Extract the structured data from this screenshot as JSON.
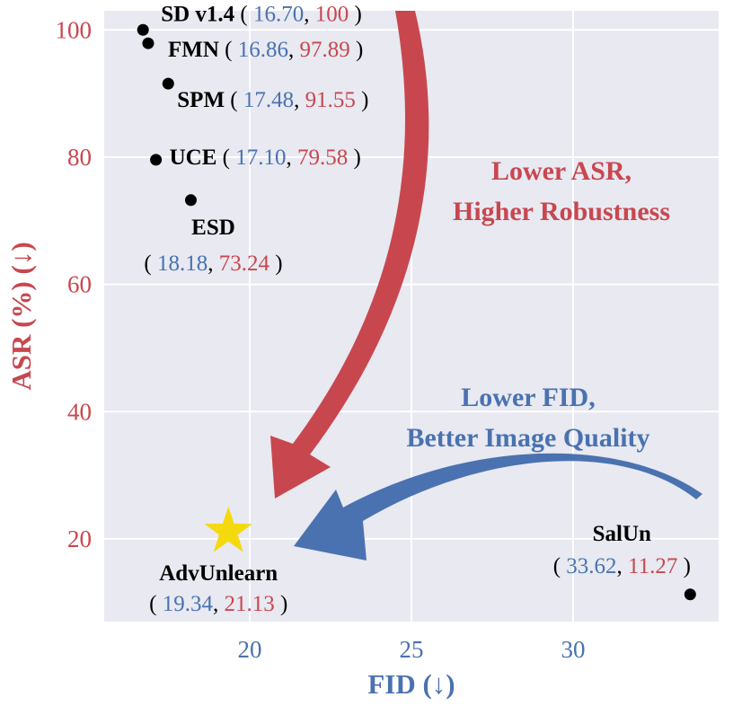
{
  "chart_data": {
    "type": "scatter",
    "xlabel": "FID (↓)",
    "ylabel": "ASR (%) (↓)",
    "xlim": [
      15.5,
      34.5
    ],
    "ylim": [
      7,
      103
    ],
    "xticks": [
      "20",
      "25",
      "30"
    ],
    "yticks": [
      "20",
      "40",
      "60",
      "80",
      "100"
    ],
    "grid": true,
    "points": [
      {
        "name": "SD v1.4",
        "x": 16.7,
        "y": 100,
        "x_text": "16.70",
        "y_text": "100",
        "marker": "dot"
      },
      {
        "name": "FMN",
        "x": 16.86,
        "y": 97.89,
        "x_text": "16.86",
        "y_text": "97.89",
        "marker": "dot"
      },
      {
        "name": "SPM",
        "x": 17.48,
        "y": 91.55,
        "x_text": "17.48",
        "y_text": "91.55",
        "marker": "dot"
      },
      {
        "name": "UCE",
        "x": 17.1,
        "y": 79.58,
        "x_text": "17.10",
        "y_text": "79.58",
        "marker": "dot"
      },
      {
        "name": "ESD",
        "x": 18.18,
        "y": 73.24,
        "x_text": "18.18",
        "y_text": "73.24",
        "marker": "dot"
      },
      {
        "name": "AdvUnlearn",
        "x": 19.34,
        "y": 21.13,
        "x_text": "19.34",
        "y_text": "21.13",
        "marker": "star"
      },
      {
        "name": "SalUn",
        "x": 33.62,
        "y": 11.27,
        "x_text": "33.62",
        "y_text": "11.27",
        "marker": "dot"
      }
    ],
    "annotations": [
      {
        "lines": [
          "Lower ASR,",
          "Higher Robustness"
        ],
        "color": "#c8474f"
      },
      {
        "lines": [
          "Lower FID,",
          "Better Image Quality"
        ],
        "color": "#4a72b0"
      }
    ]
  },
  "colors": {
    "x_color": "#4a72b0",
    "y_color": "#c8474f",
    "panel_bg": "#e8e9f1",
    "star": "#f5d90f",
    "arrow_red": "#c8474f",
    "arrow_blue": "#4a72b0"
  }
}
